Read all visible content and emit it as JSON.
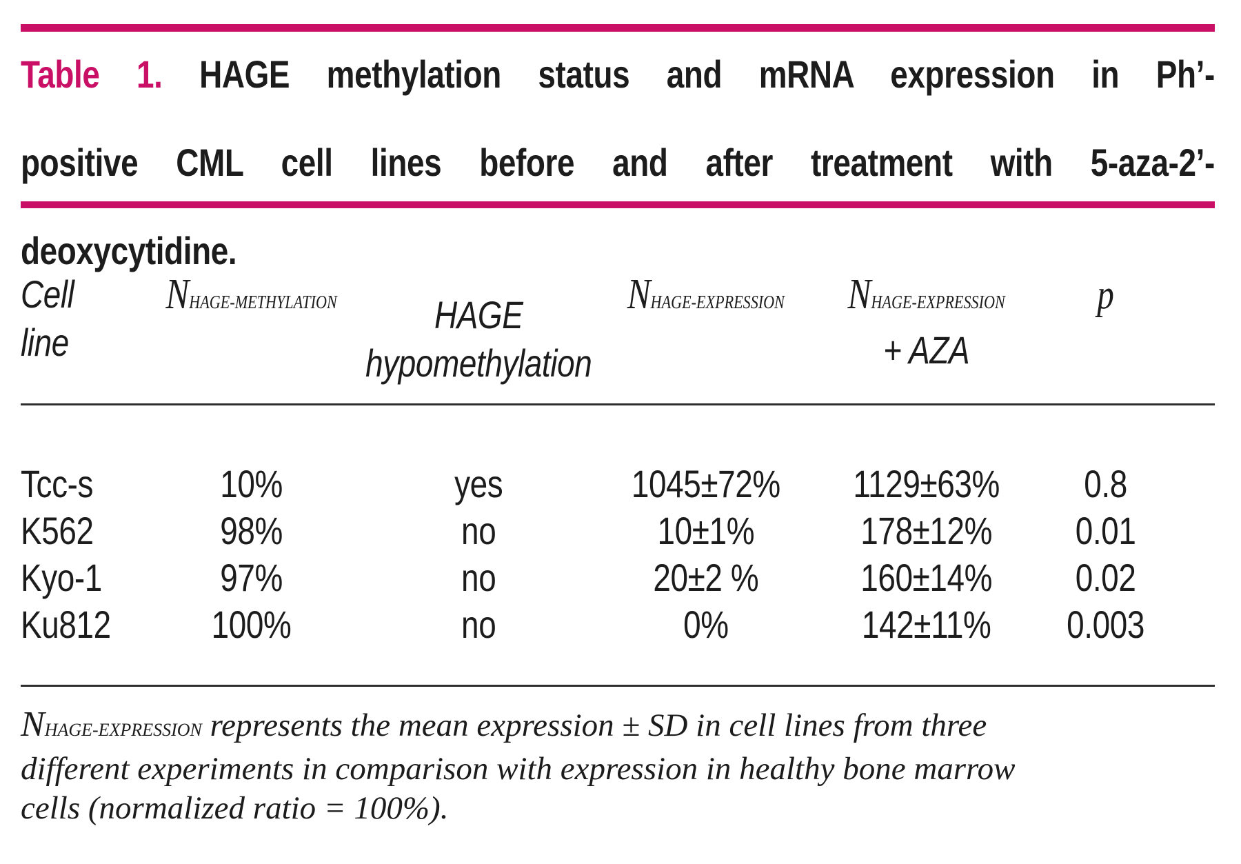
{
  "colors": {
    "accent": "#c90f66",
    "text": "#1c1c1c",
    "rule": "#2e2e2e",
    "background": "#ffffff"
  },
  "title": {
    "line1_label": "Table 1.",
    "line1_rest": "HAGE methylation status and mRNA expression in Ph’-",
    "line2": "positive CML cell lines before and after treatment with 5-aza-2’-",
    "line3": "deoxycytidine."
  },
  "table": {
    "header": {
      "cell_line_line1": "Cell",
      "cell_line_line2": "line",
      "methylation_n": "N",
      "methylation_sub": "HAGE-METHYLATION",
      "hypomethylation_line1": "HAGE",
      "hypomethylation_line2": "hypomethylation",
      "expression_n": "N",
      "expression_sub": "HAGE-EXPRESSION",
      "expression_aza_n": "N",
      "expression_aza_sub": "HAGE-EXPRESSION",
      "expression_aza_line2": "+ AZA",
      "p": "p"
    },
    "rows": [
      {
        "cell_line": "Tcc-s",
        "methylation": "10%",
        "hypomethylation": "yes",
        "expression": "1045±72%",
        "expression_aza": "1129±63%",
        "p": "0.8"
      },
      {
        "cell_line": "K562",
        "methylation": "98%",
        "hypomethylation": "no",
        "expression": "10±1%",
        "expression_aza": "178±12%",
        "p": "0.01"
      },
      {
        "cell_line": "Kyo-1",
        "methylation": "97%",
        "hypomethylation": "no",
        "expression": "20±2 %",
        "expression_aza": "160±14%",
        "p": "0.02"
      },
      {
        "cell_line": "Ku812",
        "methylation": "100%",
        "hypomethylation": "no",
        "expression": "0%",
        "expression_aza": "142±11%",
        "p": "0.003"
      }
    ]
  },
  "footnote": {
    "n": "N",
    "sub": "HAGE-EXPRESSION",
    "line1_rest": " represents the mean expression ± SD in cell lines from three",
    "line2": "different experiments in comparison with expression in healthy bone marrow",
    "line3": "cells (normalized ratio = 100%)."
  }
}
